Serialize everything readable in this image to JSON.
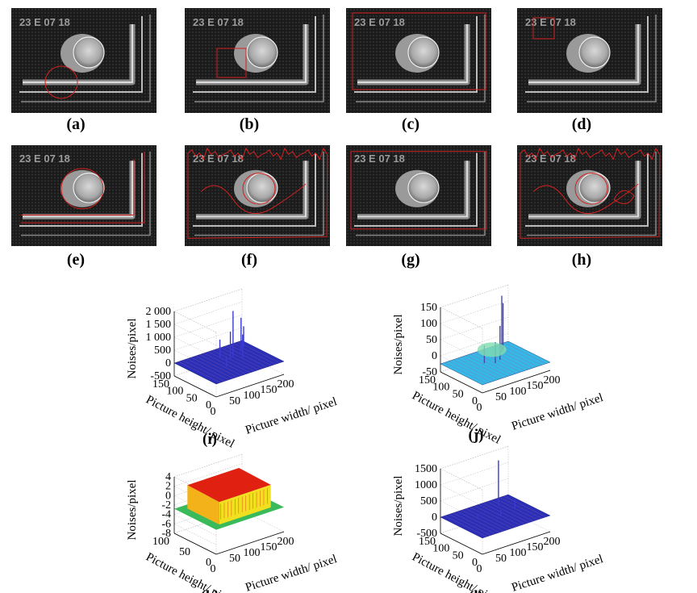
{
  "panels": [
    {
      "label": "(a)",
      "stamp": "23 E 07 18"
    },
    {
      "label": "(b)",
      "stamp": "23 E 07 18"
    },
    {
      "label": "(c)",
      "stamp": "23 E 07 18"
    },
    {
      "label": "(d)",
      "stamp": "23 E 07 18"
    },
    {
      "label": "(e)",
      "stamp": "23 E 07 18"
    },
    {
      "label": "(f)",
      "stamp": "23 E 07 18"
    },
    {
      "label": "(g)",
      "stamp": "23 E 07 18"
    },
    {
      "label": "(h)",
      "stamp": "23 E 07 18"
    }
  ],
  "chart_data": [
    {
      "type": "surface",
      "panel_label": "(i)",
      "zlabel": "Noises/pixel",
      "ylabel": "Picture height/ pixel",
      "xlabel": "Picture width/ pixel",
      "ztick_labels": [
        "2 000",
        "1 500",
        "1 000",
        "500",
        "0",
        "-500"
      ],
      "ytick_labels": [
        "150",
        "100",
        "50",
        "0"
      ],
      "xtick_labels": [
        "50",
        "100",
        "150",
        "200"
      ],
      "zlim": [
        -500,
        2000
      ],
      "xlim": [
        0,
        200
      ],
      "ylim": [
        0,
        150
      ],
      "colormap": "blue"
    },
    {
      "type": "surface",
      "panel_label": "(j)",
      "zlabel": "Noises/pixel",
      "ylabel": "Picture height/ pixel",
      "xlabel": "Picture width/ pixel",
      "ztick_labels": [
        "150",
        "100",
        "50",
        "0",
        "-50"
      ],
      "ytick_labels": [
        "150",
        "100",
        "50",
        "0"
      ],
      "xtick_labels": [
        "50",
        "100",
        "150",
        "200"
      ],
      "zlim": [
        -50,
        150
      ],
      "xlim": [
        0,
        200
      ],
      "ylim": [
        0,
        150
      ],
      "colormap": "cyan-blue"
    },
    {
      "type": "surface",
      "panel_label": "(k)",
      "zlabel": "Noises/pixel",
      "ylabel": "Picture height/ pixel",
      "xlabel": "Picture width/ pixel",
      "ztick_labels": [
        "4",
        "2",
        "0",
        "-2",
        "-4",
        "-6",
        "-8"
      ],
      "ytick_labels": [
        "100",
        "50",
        "0"
      ],
      "xtick_labels": [
        "50",
        "100",
        "150",
        "200"
      ],
      "zlim": [
        -8,
        4
      ],
      "xlim": [
        0,
        200
      ],
      "ylim": [
        0,
        100
      ],
      "colormap": "red-yellow-green"
    },
    {
      "type": "surface",
      "panel_label": "(l)",
      "zlabel": "Noises/pixel",
      "ylabel": "Picture height/ pixel",
      "xlabel": "Picture width/ pixel",
      "ztick_labels": [
        "1500",
        "1000",
        "500",
        "0",
        "-500"
      ],
      "ytick_labels": [
        "150",
        "100",
        "50",
        "0"
      ],
      "xtick_labels": [
        "50",
        "100",
        "150",
        "200"
      ],
      "zlim": [
        -500,
        1500
      ],
      "xlim": [
        0,
        200
      ],
      "ylim": [
        0,
        150
      ],
      "colormap": "blue"
    }
  ],
  "colors": {
    "contour": "#d42020",
    "blue_surface": "#2a2fb8",
    "cyan_surface": "#35b8e6",
    "red_surface": "#e02010",
    "yellow_surface": "#f0e020",
    "green_surface": "#3aba5a"
  }
}
